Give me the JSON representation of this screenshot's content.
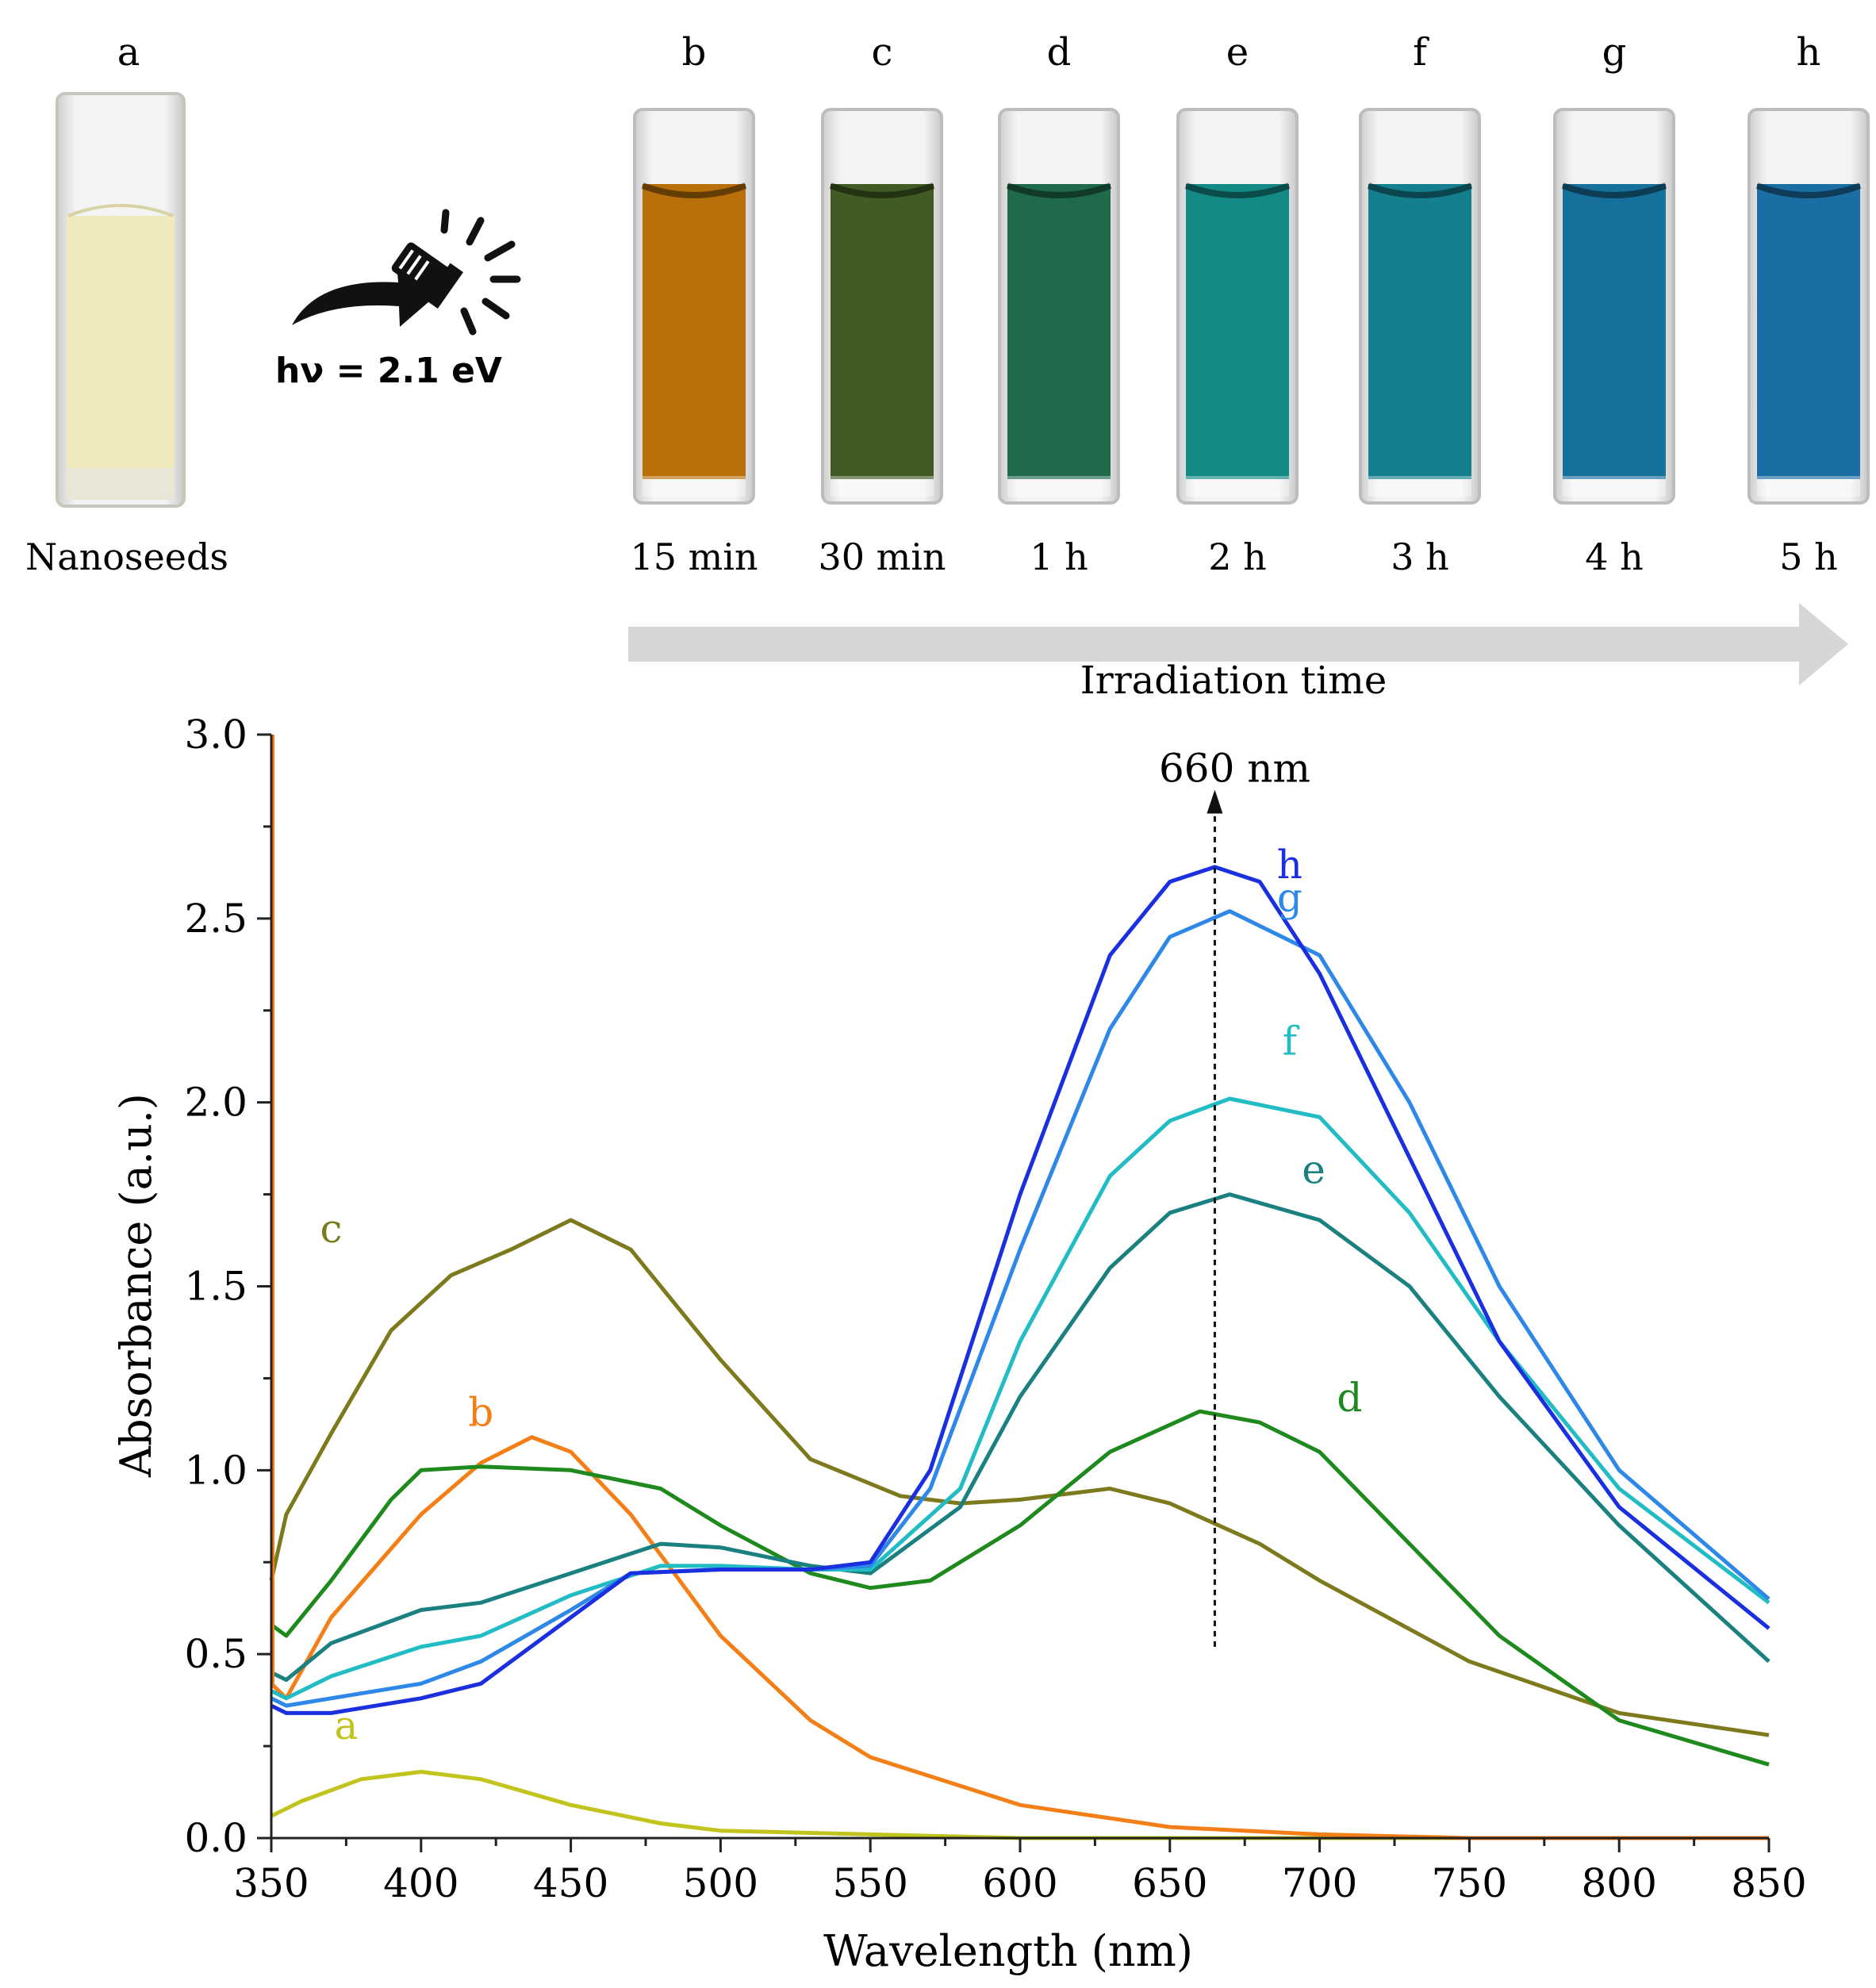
{
  "photo_panel": {
    "nanoseeds": {
      "letter": "a",
      "caption": "Nanoseeds",
      "color": "#efe9bd"
    },
    "excitation_label": "hν = 2.1 eV",
    "excitation_icon": "flashlight-icon",
    "samples": [
      {
        "letter": "b",
        "caption": "15 min",
        "color": "#b7700a"
      },
      {
        "letter": "c",
        "caption": "30 min",
        "color": "#415b24"
      },
      {
        "letter": "d",
        "caption": "1 h",
        "color": "#1f6a4a"
      },
      {
        "letter": "e",
        "caption": "2 h",
        "color": "#138a86"
      },
      {
        "letter": "f",
        "caption": "3 h",
        "color": "#14808e"
      },
      {
        "letter": "g",
        "caption": "4 h",
        "color": "#176f9c"
      },
      {
        "letter": "h",
        "caption": "5 h",
        "color": "#1a6ea3"
      }
    ],
    "time_arrow_label": "Irradiation time",
    "arrow_color": "#d6d6d6"
  },
  "chart_data": {
    "type": "line",
    "xlabel": "Wavelength (nm)",
    "ylabel": "Absorbance (a.u.)",
    "xlim": [
      350,
      850
    ],
    "ylim": [
      0,
      3.0
    ],
    "xticks": [
      "350",
      "400",
      "450",
      "500",
      "550",
      "600",
      "650",
      "700",
      "750",
      "800",
      "850"
    ],
    "yticks": [
      "0.0",
      "0.5",
      "1.0",
      "1.5",
      "2.0",
      "2.5",
      "3.0"
    ],
    "annotation": {
      "text": "660 nm",
      "x": 665,
      "y_from": 0.52,
      "y_to": 2.85
    },
    "series": [
      {
        "name": "a",
        "color": "#c2c41e",
        "label_at": [
          375,
          0.27
        ],
        "x": [
          350,
          360,
          380,
          400,
          420,
          450,
          480,
          500,
          550,
          600,
          700,
          850
        ],
        "y": [
          0.06,
          0.1,
          0.16,
          0.18,
          0.16,
          0.09,
          0.04,
          0.02,
          0.01,
          0.0,
          0.0,
          0.0
        ]
      },
      {
        "name": "b",
        "color": "#f57f17",
        "label_at": [
          420,
          1.12
        ],
        "x": [
          350,
          355,
          370,
          400,
          420,
          437,
          450,
          470,
          500,
          530,
          550,
          600,
          650,
          700,
          750,
          850
        ],
        "y": [
          0.42,
          0.38,
          0.6,
          0.88,
          1.02,
          1.09,
          1.05,
          0.88,
          0.55,
          0.32,
          0.22,
          0.09,
          0.03,
          0.01,
          0.0,
          0.0
        ]
      },
      {
        "name": "c",
        "color": "#7d7a1e",
        "label_at": [
          370,
          1.62
        ],
        "x": [
          350,
          355,
          370,
          390,
          410,
          430,
          450,
          470,
          500,
          530,
          560,
          580,
          600,
          630,
          650,
          680,
          700,
          750,
          800,
          850
        ],
        "y": [
          0.7,
          0.88,
          1.1,
          1.38,
          1.53,
          1.6,
          1.68,
          1.6,
          1.3,
          1.03,
          0.93,
          0.91,
          0.92,
          0.95,
          0.91,
          0.8,
          0.7,
          0.48,
          0.34,
          0.28
        ]
      },
      {
        "name": "d",
        "color": "#1e8a1e",
        "label_at": [
          710,
          1.16
        ],
        "x": [
          350,
          355,
          370,
          390,
          400,
          420,
          450,
          480,
          500,
          530,
          550,
          570,
          600,
          630,
          660,
          680,
          700,
          730,
          760,
          800,
          850
        ],
        "y": [
          0.58,
          0.55,
          0.7,
          0.92,
          1.0,
          1.01,
          1.0,
          0.95,
          0.85,
          0.72,
          0.68,
          0.7,
          0.85,
          1.05,
          1.16,
          1.13,
          1.05,
          0.8,
          0.55,
          0.32,
          0.2
        ]
      },
      {
        "name": "e",
        "color": "#1a8080",
        "label_at": [
          698,
          1.78
        ],
        "x": [
          350,
          355,
          370,
          400,
          420,
          450,
          480,
          500,
          530,
          550,
          580,
          600,
          630,
          650,
          670,
          700,
          730,
          760,
          800,
          850
        ],
        "y": [
          0.45,
          0.43,
          0.53,
          0.62,
          0.64,
          0.72,
          0.8,
          0.79,
          0.74,
          0.72,
          0.9,
          1.2,
          1.55,
          1.7,
          1.75,
          1.68,
          1.5,
          1.2,
          0.85,
          0.48
        ]
      },
      {
        "name": "f",
        "color": "#22bcc4",
        "label_at": [
          690,
          2.13
        ],
        "x": [
          350,
          355,
          370,
          400,
          420,
          450,
          480,
          500,
          530,
          550,
          580,
          600,
          630,
          650,
          670,
          700,
          730,
          760,
          800,
          850
        ],
        "y": [
          0.4,
          0.38,
          0.44,
          0.52,
          0.55,
          0.66,
          0.74,
          0.74,
          0.73,
          0.73,
          0.95,
          1.35,
          1.8,
          1.95,
          2.01,
          1.96,
          1.7,
          1.35,
          0.95,
          0.64
        ]
      },
      {
        "name": "g",
        "color": "#2e88e8",
        "label_at": [
          690,
          2.52
        ],
        "x": [
          350,
          355,
          370,
          400,
          420,
          450,
          470,
          500,
          530,
          550,
          570,
          600,
          630,
          650,
          670,
          700,
          730,
          760,
          800,
          850
        ],
        "y": [
          0.38,
          0.36,
          0.38,
          0.42,
          0.48,
          0.62,
          0.72,
          0.73,
          0.73,
          0.74,
          0.95,
          1.6,
          2.2,
          2.45,
          2.52,
          2.4,
          2.0,
          1.5,
          1.0,
          0.65
        ]
      },
      {
        "name": "h",
        "color": "#1a2fe0",
        "label_at": [
          690,
          2.61
        ],
        "x": [
          350,
          355,
          370,
          400,
          420,
          450,
          470,
          500,
          530,
          550,
          570,
          600,
          630,
          650,
          665,
          680,
          700,
          730,
          760,
          800,
          850
        ],
        "y": [
          0.36,
          0.34,
          0.34,
          0.38,
          0.42,
          0.6,
          0.72,
          0.73,
          0.73,
          0.75,
          1.0,
          1.75,
          2.4,
          2.6,
          2.64,
          2.6,
          2.35,
          1.85,
          1.35,
          0.9,
          0.57
        ]
      }
    ]
  }
}
